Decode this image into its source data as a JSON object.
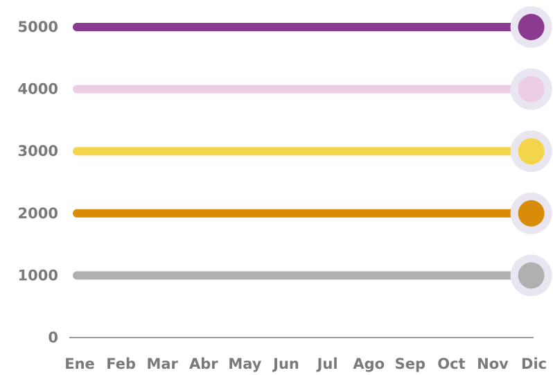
{
  "chart_data": {
    "type": "line",
    "categories": [
      "Ene",
      "Feb",
      "Mar",
      "Abr",
      "May",
      "Jun",
      "Jul",
      "Ago",
      "Sep",
      "Oct",
      "Nov",
      "Dic"
    ],
    "series": [
      {
        "color": "#8b3a8f",
        "values": [
          5000,
          5000,
          5000,
          5000,
          5000,
          5000,
          5000,
          5000,
          5000,
          5000,
          5000,
          5000
        ]
      },
      {
        "color": "#eccde3",
        "values": [
          4000,
          4000,
          4000,
          4000,
          4000,
          4000,
          4000,
          4000,
          4000,
          4000,
          4000,
          4000
        ]
      },
      {
        "color": "#f2d54a",
        "values": [
          3000,
          3000,
          3000,
          3000,
          3000,
          3000,
          3000,
          3000,
          3000,
          3000,
          3000,
          3000
        ]
      },
      {
        "color": "#d98c0a",
        "values": [
          2000,
          2000,
          2000,
          2000,
          2000,
          2000,
          2000,
          2000,
          2000,
          2000,
          2000,
          2000
        ]
      },
      {
        "color": "#b0b0b0",
        "values": [
          1000,
          1000,
          1000,
          1000,
          1000,
          1000,
          1000,
          1000,
          1000,
          1000,
          1000,
          1000
        ]
      }
    ],
    "ylim": [
      0,
      5000
    ],
    "yticks": [
      0,
      1000,
      2000,
      3000,
      4000,
      5000
    ],
    "grid": false
  }
}
